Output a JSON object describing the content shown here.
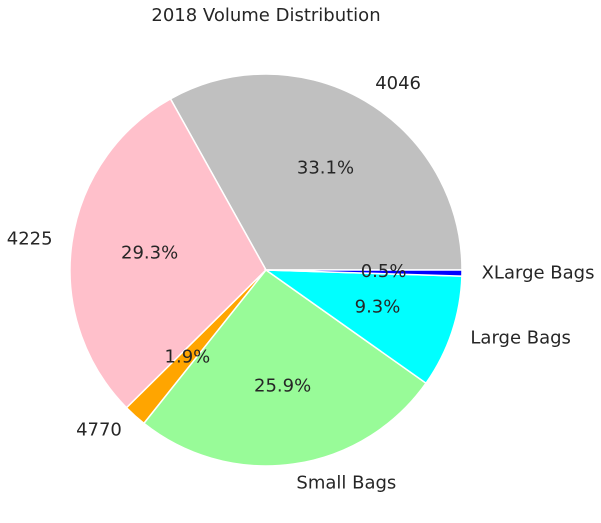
{
  "chart_data": {
    "type": "pie",
    "title": "2018 Volume Distribution",
    "slices": [
      {
        "label": "4046",
        "value": 33.1,
        "pct_label": "33.1%",
        "color": "#c0c0c0"
      },
      {
        "label": "4225",
        "value": 29.3,
        "pct_label": "29.3%",
        "color": "#ffc0cb"
      },
      {
        "label": "4770",
        "value": 1.9,
        "pct_label": "1.9%",
        "color": "#ffa500"
      },
      {
        "label": "Small Bags",
        "value": 25.9,
        "pct_label": "25.9%",
        "color": "#98fb98"
      },
      {
        "label": "Large Bags",
        "value": 9.3,
        "pct_label": "9.3%",
        "color": "#00ffff"
      },
      {
        "label": "XLarge Bags",
        "value": 0.5,
        "pct_label": "0.5%",
        "color": "#0000ff"
      }
    ]
  }
}
